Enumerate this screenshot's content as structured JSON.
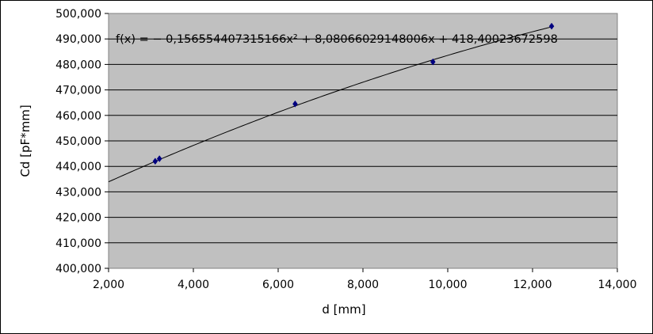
{
  "chart_data": {
    "type": "scatter",
    "xlabel": "d [mm]",
    "ylabel": "Cd [pF*mm]",
    "xlim": [
      2,
      14
    ],
    "ylim": [
      400,
      500
    ],
    "x_ticks": [
      "2,000",
      "4,000",
      "6,000",
      "8,000",
      "10,000",
      "12,000",
      "14,000"
    ],
    "y_ticks": [
      "400,000",
      "410,000",
      "420,000",
      "430,000",
      "440,000",
      "450,000",
      "460,000",
      "470,000",
      "480,000",
      "490,000",
      "500,000"
    ],
    "grid": "horizontal",
    "plot_background": "#c0c0c0",
    "point_color": "#000080",
    "trendline": {
      "label": "f(x) = − 0,156554407315166x² + 8,08066029148006x + 418,40023672598",
      "coefficients": {
        "a": -0.156554407315166,
        "b": 8.08066029148006,
        "c": 418.40023672598
      },
      "x_range": [
        2.0,
        12.5
      ]
    },
    "points": [
      {
        "x": 3.1,
        "y": 442
      },
      {
        "x": 3.2,
        "y": 443
      },
      {
        "x": 6.4,
        "y": 464.5
      },
      {
        "x": 9.65,
        "y": 481
      },
      {
        "x": 12.45,
        "y": 495
      }
    ]
  }
}
